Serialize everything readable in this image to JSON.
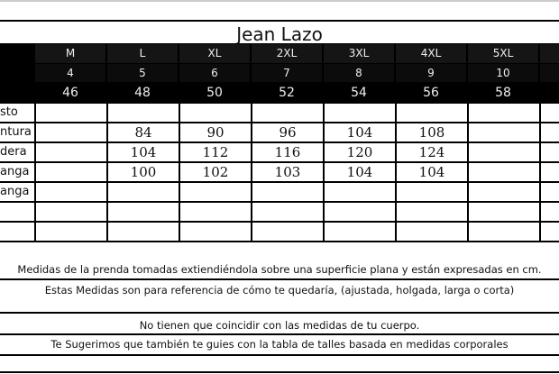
{
  "title": "Jean Lazo",
  "sizes": [
    "M",
    "L",
    "XL",
    "2XL",
    "3XL",
    "4XL",
    "5XL"
  ],
  "size_numbers": [
    "4",
    "5",
    "6",
    "7",
    "8",
    "9",
    "10"
  ],
  "eu_sizes": [
    "46",
    "48",
    "50",
    "52",
    "54",
    "56",
    "58"
  ],
  "rows": [
    {
      "label": "sto",
      "values": [
        "",
        "",
        "",
        "",
        "",
        "",
        ""
      ]
    },
    {
      "label": "ntura",
      "values": [
        "",
        "84",
        "90",
        "96",
        "104",
        "108",
        ""
      ]
    },
    {
      "label": "dera",
      "values": [
        "",
        "104",
        "112",
        "116",
        "120",
        "124",
        ""
      ]
    },
    {
      "label": "anga",
      "values": [
        "",
        "100",
        "102",
        "103",
        "104",
        "104",
        ""
      ]
    },
    {
      "label": "anga",
      "values": [
        "",
        "",
        "",
        "",
        "",
        "",
        ""
      ]
    },
    {
      "label": "",
      "values": [
        "",
        "",
        "",
        "",
        "",
        "",
        ""
      ]
    },
    {
      "label": "",
      "values": [
        "",
        "",
        "",
        "",
        "",
        "",
        ""
      ]
    }
  ],
  "notes": [
    "Medidas de la prenda tomadas extiendiéndola sobre una superficie plana y están expresadas en cm.",
    "Estas Medidas son para referencia de cómo te quedaría, (ajustada, holgada, larga o corta)",
    "No tienen que coincidir con las medidas de tu cuerpo.",
    "Te Sugerimos que también te guies con la tabla de talles basada en medidas corporales"
  ]
}
